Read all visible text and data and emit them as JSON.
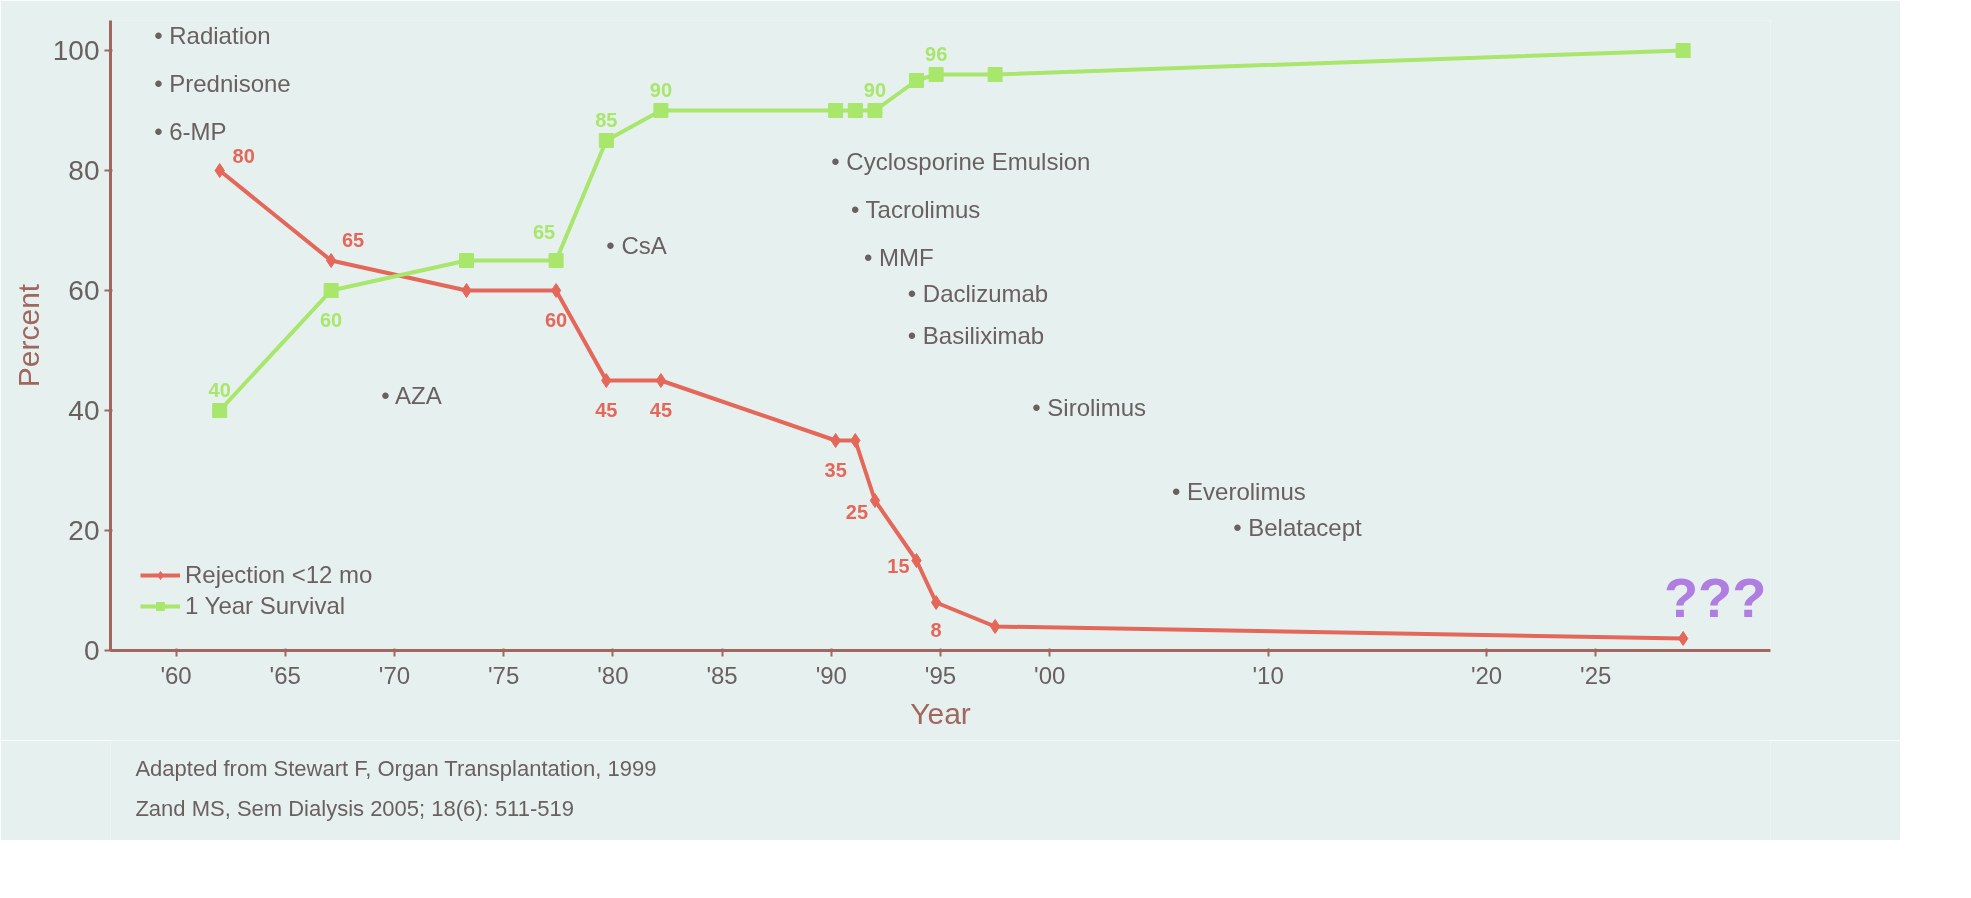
{
  "chart_data": {
    "type": "line",
    "xlabel": "Year",
    "ylabel": "Percent",
    "x": [
      1962,
      1967.1,
      1973.3,
      1977.4,
      1979.7,
      1982.2,
      1990.2,
      1991.1,
      1992,
      1993.9,
      1994.8,
      1997.5,
      2029
    ],
    "series": [
      {
        "name": "Rejection <12 mo",
        "color": "#e4675a",
        "marker": "diamond",
        "values": [
          80,
          65,
          60,
          60,
          45,
          45,
          35,
          35,
          25,
          15,
          8,
          4,
          2
        ],
        "value_labels": [
          "80",
          "65",
          null,
          "60",
          "45",
          "45",
          "35",
          null,
          "25",
          "15",
          "8",
          null,
          null
        ]
      },
      {
        "name": "1 Year Survival",
        "color": "#a8e66c",
        "marker": "square",
        "values": [
          40,
          60,
          65,
          65,
          85,
          90,
          90,
          90,
          90,
          95,
          96,
          96,
          100
        ],
        "value_labels": [
          "40",
          "60",
          null,
          "65",
          "85",
          "90",
          null,
          null,
          "90",
          null,
          "96",
          null,
          null
        ]
      }
    ],
    "xlim": [
      1957,
      2033
    ],
    "ylim": [
      0,
      105
    ],
    "xticks": [
      {
        "value": 1960,
        "label": "'60"
      },
      {
        "value": 1965,
        "label": "'65"
      },
      {
        "value": 1970,
        "label": "'70"
      },
      {
        "value": 1975,
        "label": "'75"
      },
      {
        "value": 1980,
        "label": "'80"
      },
      {
        "value": 1985,
        "label": "'85"
      },
      {
        "value": 1990,
        "label": "'90"
      },
      {
        "value": 1995,
        "label": "'95"
      },
      {
        "value": 2000,
        "label": "'00"
      },
      {
        "value": 2010,
        "label": "'10"
      },
      {
        "value": 2020,
        "label": "'20"
      },
      {
        "value": 2025,
        "label": "'25"
      }
    ],
    "yticks": [
      0,
      20,
      40,
      60,
      80,
      100
    ],
    "grid": false,
    "legend": "bottom left",
    "annotations": [
      "• Radiation",
      "• Prednisone",
      "• 6-MP",
      "• AZA",
      "• CsA",
      "• Cyclosporine Emulsion",
      "• Tacrolimus",
      "• MMF",
      "• Daclizumab",
      "• Basiliximab",
      "• Sirolimus",
      "• Everolimus",
      "• Belatacept",
      "???",
      "Adapted from Stewart F, Organ Transplantation, 1999",
      "Zand MS, Sem Dialysis 2005; 18(6): 511-519"
    ]
  }
}
